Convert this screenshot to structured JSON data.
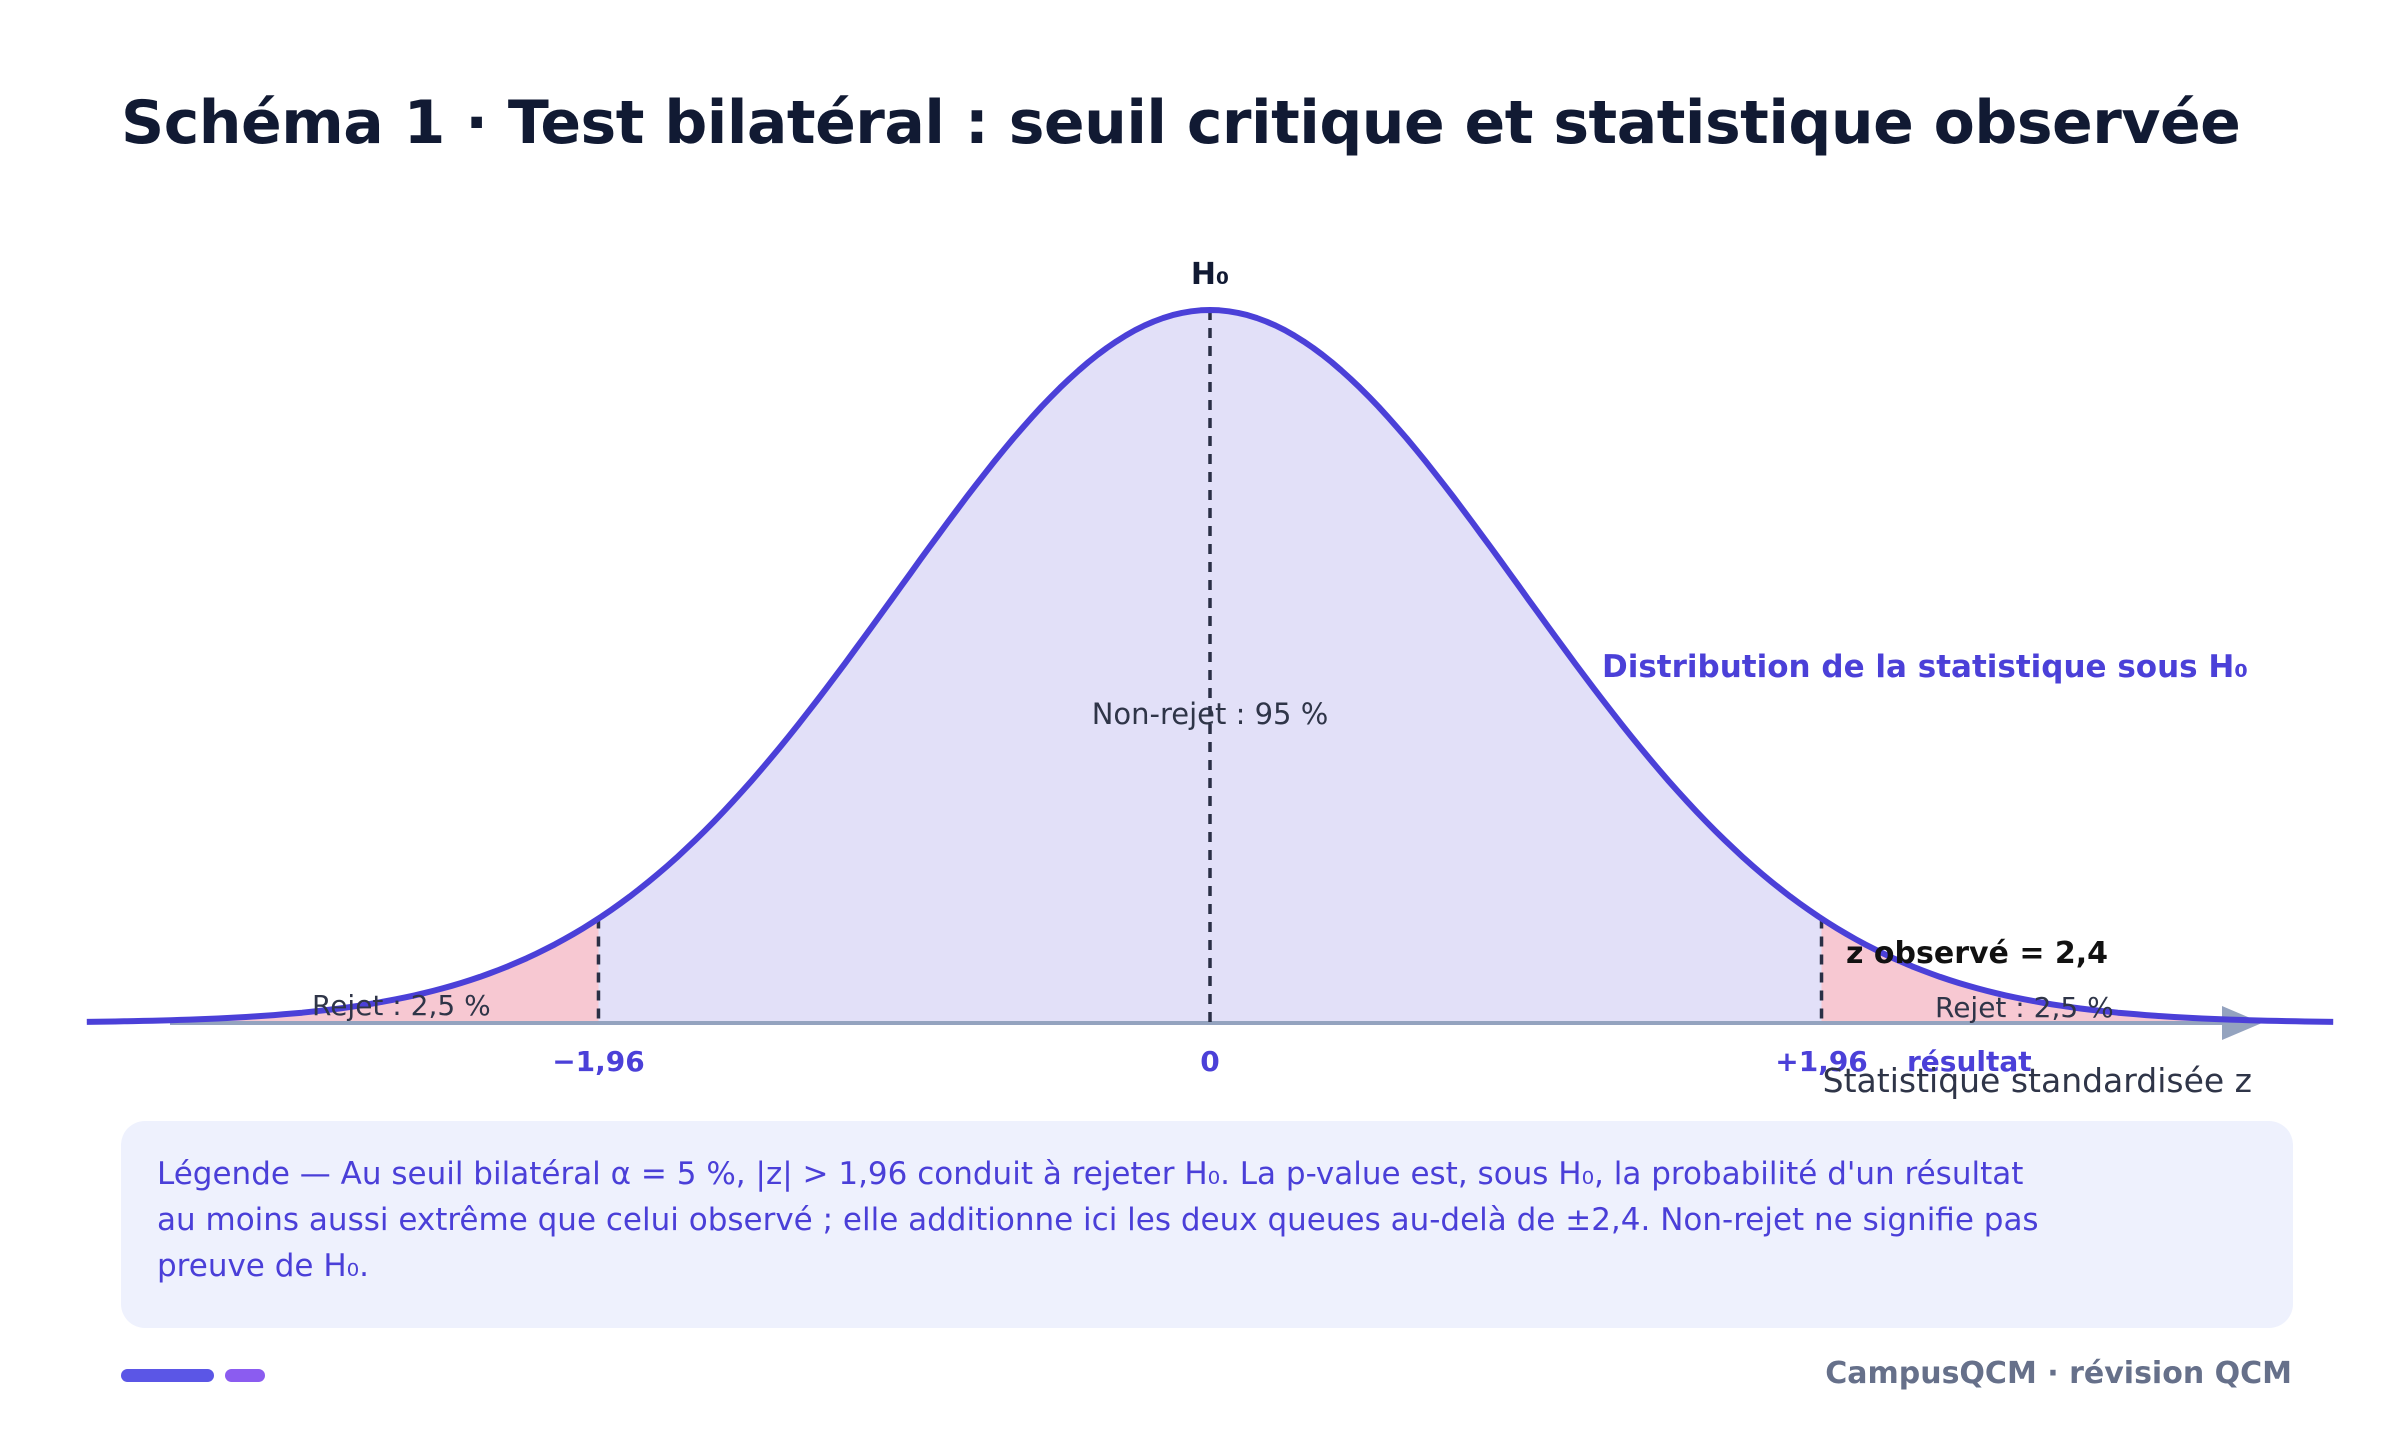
{
  "title": "Schéma 1 · Test bilatéral : seuil critique et statistique observée",
  "diagram": {
    "h0_label": "H₀",
    "curve_label": "Distribution de la statistique sous H₀",
    "non_reject_label": "Non-rejet : 95 %",
    "reject_left_label": "Rejet : 2,5 %",
    "reject_right_label": "Rejet : 2,5 %",
    "observed_label": "z observé = 2,4",
    "tick_left": "−1,96",
    "tick_center": "0",
    "tick_right": "+1,96",
    "result_label": "résultat",
    "axis_label": "Statistique standardisée z",
    "critical_value": 1.96,
    "observed_value": 2.4,
    "z_range": [
      -4,
      4
    ],
    "colors": {
      "curve": "#4b40d8",
      "fill_accept": "#e2e0f8",
      "fill_reject": "#f7c8d2",
      "axis": "#94a3bf",
      "text_dark": "#1f2937",
      "accent_text": "#4b40d8"
    }
  },
  "legend_text": "Légende — Au seuil bilatéral α = 5 %, |z| > 1,96 conduit à rejeter H₀. La p-value est, sous H₀, la probabilité d'un résultat au moins aussi extrême que celui observé ; elle additionne ici les deux queues au-delà de ±2,4. Non-rejet ne signifie pas preuve de H₀.",
  "footer": {
    "brand": "CampusQCM · révision QCM"
  }
}
